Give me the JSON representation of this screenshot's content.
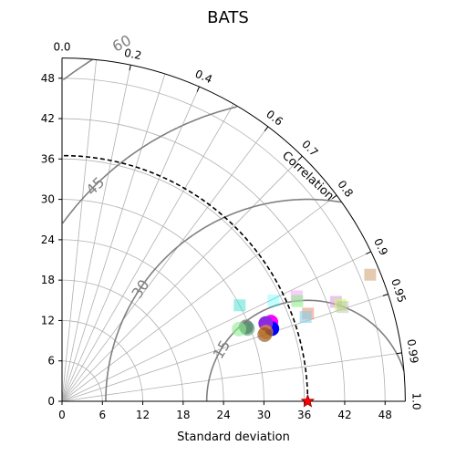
{
  "chart_data": {
    "type": "scatter",
    "subtype": "taylor-diagram",
    "title": "BATS",
    "xlabel": "Standard deviation",
    "correlation_label": "Correlation",
    "std_range": [
      0,
      51
    ],
    "std_ticks": [
      0,
      6,
      12,
      18,
      24,
      30,
      36,
      42,
      48
    ],
    "correlation_ticks": [
      0.0,
      0.2,
      0.4,
      0.6,
      0.7,
      0.8,
      0.9,
      0.95,
      0.99,
      1.0
    ],
    "correlation_tick_labels": [
      "0.0",
      "0.2",
      "0.4",
      "0.6",
      "0.7",
      "0.8",
      "0.9",
      "0.95",
      "0.99",
      "1.0"
    ],
    "reference_std": 36.5,
    "rms_contours": [
      15,
      30,
      45,
      60
    ],
    "rms_contour_labels": [
      "15",
      "30",
      "45",
      "60"
    ],
    "grid": true,
    "reference_point": {
      "std": 36.5,
      "corr": 1.0,
      "color": "#ff0000",
      "marker": "star"
    },
    "circle_points": [
      {
        "std": 33.2,
        "corr": 0.935,
        "color": "#ff00ff",
        "alpha": 1.0
      },
      {
        "std": 33.0,
        "corr": 0.945,
        "color": "#0000ff",
        "alpha": 1.0
      },
      {
        "std": 32.4,
        "corr": 0.934,
        "color": "#8a2be2",
        "alpha": 1.0
      },
      {
        "std": 32.0,
        "corr": 0.947,
        "color": "#ffa500",
        "alpha": 0.6
      },
      {
        "std": 31.7,
        "corr": 0.95,
        "color": "#8b4513",
        "alpha": 0.6
      },
      {
        "std": 29.5,
        "corr": 0.927,
        "color": "#808080",
        "alpha": 0.8
      },
      {
        "std": 29.6,
        "corr": 0.931,
        "color": "#2e8b57",
        "alpha": 0.5
      },
      {
        "std": 28.4,
        "corr": 0.926,
        "color": "#90ee90",
        "alpha": 0.6
      }
    ],
    "square_points": [
      {
        "std": 49.5,
        "corr": 0.925,
        "color": "#d2a679",
        "alpha": 0.6
      },
      {
        "std": 43.3,
        "corr": 0.94,
        "color": "#dda0dd",
        "alpha": 0.6
      },
      {
        "std": 43.8,
        "corr": 0.945,
        "color": "#ccff66",
        "alpha": 0.6
      },
      {
        "std": 44.0,
        "corr": 0.948,
        "color": "#b0b0b0",
        "alpha": 0.4
      },
      {
        "std": 38.2,
        "corr": 0.913,
        "color": "#ee82ee",
        "alpha": 0.4
      },
      {
        "std": 38.0,
        "corr": 0.92,
        "color": "#90ee90",
        "alpha": 0.6
      },
      {
        "std": 38.8,
        "corr": 0.942,
        "color": "#e9967a",
        "alpha": 0.6
      },
      {
        "std": 38.3,
        "corr": 0.945,
        "color": "#87ceeb",
        "alpha": 0.6
      },
      {
        "std": 34.8,
        "corr": 0.903,
        "color": "#00ffff",
        "alpha": 0.25
      },
      {
        "std": 30.0,
        "corr": 0.88,
        "color": "#40e0d0",
        "alpha": 0.5
      }
    ]
  }
}
